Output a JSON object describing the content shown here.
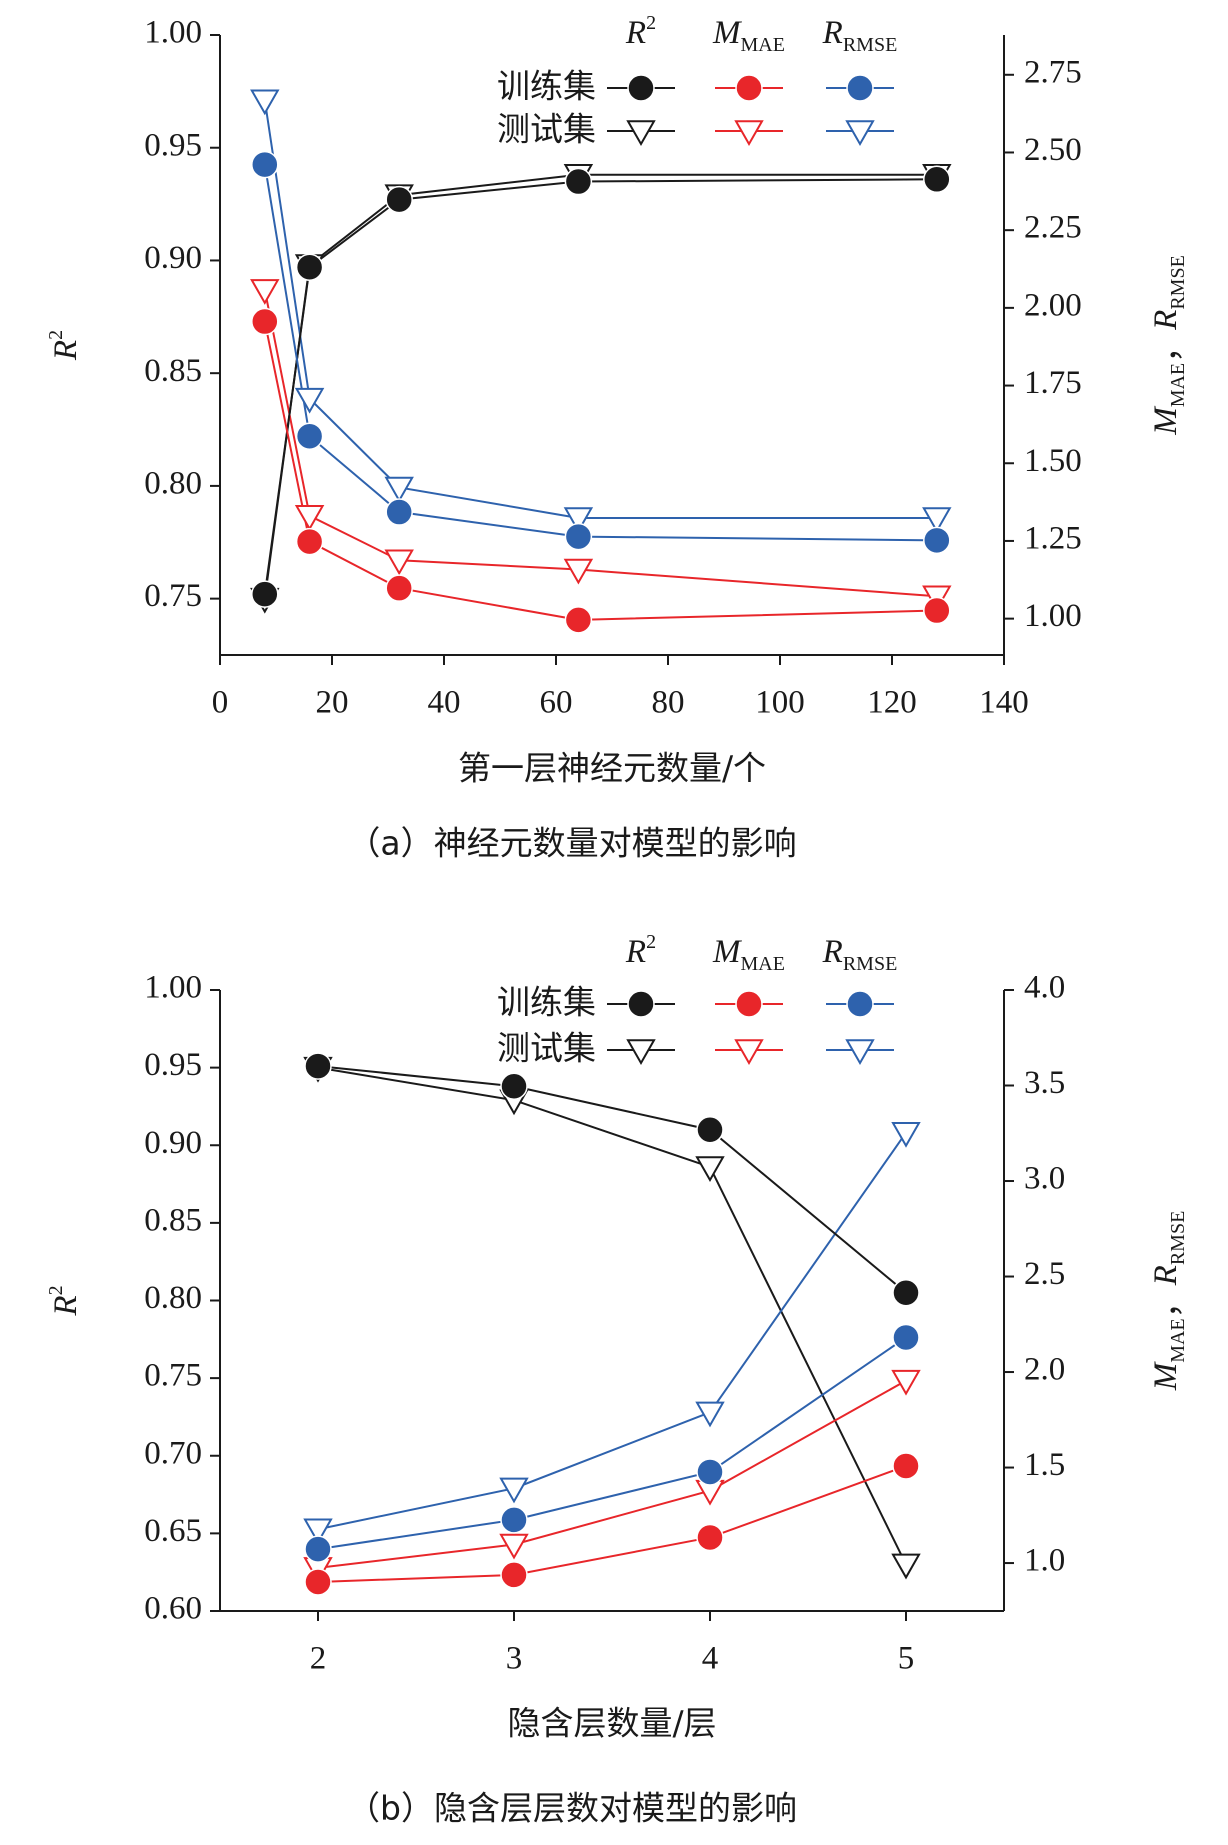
{
  "chart_data": [
    {
      "type": "line",
      "caption": "（a）神经元数量对模型的影响",
      "xlabel": "第一层神经元数量/个",
      "ylabel": {
        "base": "R",
        "sup": "2"
      },
      "y2label": [
        {
          "base": "M",
          "sub": "MAE"
        },
        {
          "text": "，"
        },
        {
          "base": "R",
          "sub": "RMSE"
        }
      ],
      "legend": {
        "rows": [
          "训练集",
          "测试集"
        ],
        "columns": [
          {
            "base": "R",
            "sup": "2"
          },
          {
            "base": "M",
            "sub": "MAE"
          },
          {
            "base": "R",
            "sub": "RMSE"
          }
        ]
      },
      "x": [
        8,
        16,
        32,
        64,
        128
      ],
      "xlim": [
        0,
        140
      ],
      "xticks": [
        0,
        20,
        40,
        60,
        80,
        100,
        120,
        140
      ],
      "ylim": [
        0.725,
        1.0
      ],
      "yticks": [
        0.75,
        {
          "value": 0.8,
          "label": "0.80"
        },
        0.85,
        {
          "value": 0.9,
          "label": "0.90"
        },
        0.95,
        {
          "value": 1.0,
          "label": "1.00"
        }
      ],
      "y2lim": [
        0.883,
        2.878
      ],
      "y2ticks": [
        {
          "value": 1.0,
          "label": "1.00"
        },
        1.25,
        {
          "value": 1.5,
          "label": "1.50"
        },
        1.75,
        {
          "value": 2.0,
          "label": "2.00"
        },
        2.25,
        {
          "value": 2.5,
          "label": "2.50"
        },
        2.75
      ],
      "series": [
        {
          "legend_row": 0,
          "legend_column": 0,
          "color": "#1a1a1a",
          "marker": "circle",
          "axis": "y",
          "values": [
            0.752,
            0.897,
            0.927,
            0.935,
            0.936
          ]
        },
        {
          "legend_row": 1,
          "legend_column": 0,
          "color": "#1a1a1a",
          "marker": "triangle",
          "axis": "y",
          "values": [
            0.75,
            0.898,
            0.929,
            0.938,
            0.938
          ]
        },
        {
          "legend_row": 0,
          "legend_column": 1,
          "color": "#e8262a",
          "marker": "circle",
          "axis": "y2",
          "values": [
            1.956,
            1.248,
            1.098,
            0.996,
            1.026
          ]
        },
        {
          "legend_row": 1,
          "legend_column": 1,
          "color": "#e8262a",
          "marker": "triangle",
          "axis": "y2",
          "values": [
            2.058,
            1.331,
            1.188,
            1.158,
            1.072
          ]
        },
        {
          "legend_row": 0,
          "legend_column": 2,
          "color": "#2e62ad",
          "marker": "circle",
          "axis": "y2",
          "values": [
            2.461,
            1.587,
            1.343,
            1.264,
            1.252
          ]
        },
        {
          "legend_row": 1,
          "legend_column": 2,
          "color": "#2e62ad",
          "marker": "triangle",
          "axis": "y2",
          "values": [
            2.668,
            1.708,
            1.422,
            1.324,
            1.324
          ]
        }
      ]
    },
    {
      "type": "line",
      "caption": "（b）隐含层层数对模型的影响",
      "xlabel": "隐含层数量/层",
      "ylabel": {
        "base": "R",
        "sup": "2"
      },
      "y2label": [
        {
          "base": "M",
          "sub": "MAE"
        },
        {
          "text": "，"
        },
        {
          "base": "R",
          "sub": "RMSE"
        }
      ],
      "legend": {
        "rows": [
          "训练集",
          "测试集"
        ],
        "columns": [
          {
            "base": "R",
            "sup": "2"
          },
          {
            "base": "M",
            "sub": "MAE"
          },
          {
            "base": "R",
            "sub": "RMSE"
          }
        ]
      },
      "x": [
        2,
        3,
        4,
        5
      ],
      "xlim": [
        1.5,
        5.5
      ],
      "xticks": [
        2,
        3,
        4,
        5
      ],
      "ylim": [
        0.6,
        1.0
      ],
      "yticks": [
        {
          "value": 0.6,
          "label": "0.60"
        },
        0.65,
        {
          "value": 0.7,
          "label": "0.70"
        },
        0.75,
        {
          "value": 0.8,
          "label": "0.80"
        },
        0.85,
        {
          "value": 0.9,
          "label": "0.90"
        },
        0.95,
        {
          "value": 1.0,
          "label": "1.00"
        }
      ],
      "y2lim": [
        0.749,
        4.0
      ],
      "y2ticks": [
        {
          "value": 1.0,
          "label": "1.0"
        },
        1.5,
        {
          "value": 2.0,
          "label": "2.0"
        },
        2.5,
        {
          "value": 3.0,
          "label": "3.0"
        },
        3.5,
        {
          "value": 4.0,
          "label": "4.0"
        }
      ],
      "series": [
        {
          "legend_row": 0,
          "legend_column": 0,
          "color": "#1a1a1a",
          "marker": "circle",
          "axis": "y",
          "values": [
            0.951,
            0.938,
            0.91,
            0.805
          ]
        },
        {
          "legend_row": 1,
          "legend_column": 0,
          "color": "#1a1a1a",
          "marker": "triangle",
          "axis": "y",
          "values": [
            0.95,
            0.929,
            0.886,
            0.63
          ]
        },
        {
          "legend_row": 0,
          "legend_column": 1,
          "color": "#e8262a",
          "marker": "circle",
          "axis": "y2",
          "values": [
            0.901,
            0.938,
            1.134,
            1.508
          ]
        },
        {
          "legend_row": 1,
          "legend_column": 1,
          "color": "#e8262a",
          "marker": "triangle",
          "axis": "y2",
          "values": [
            0.975,
            1.097,
            1.379,
            1.955
          ]
        },
        {
          "legend_row": 0,
          "legend_column": 2,
          "color": "#2e62ad",
          "marker": "circle",
          "axis": "y2",
          "values": [
            1.073,
            1.226,
            1.477,
            2.181
          ]
        },
        {
          "legend_row": 1,
          "legend_column": 2,
          "color": "#2e62ad",
          "marker": "triangle",
          "axis": "y2",
          "values": [
            1.177,
            1.391,
            1.789,
            3.253
          ]
        }
      ]
    }
  ]
}
